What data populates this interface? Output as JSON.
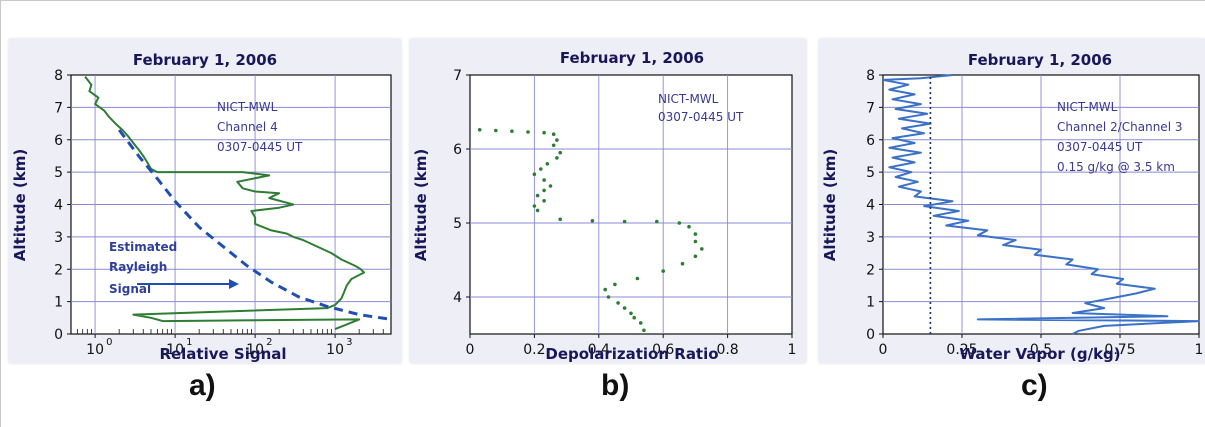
{
  "chart_data": [
    {
      "type": "line",
      "title": "February 1, 2006",
      "xlabel": "Relative Signal",
      "ylabel": "Altitude (km)",
      "x_scale": "log",
      "xlim": [
        0.5,
        5000
      ],
      "ylim": [
        0,
        8
      ],
      "x_ticks": [
        "10",
        "10",
        "10",
        "10"
      ],
      "x_tick_exponents": [
        "0",
        "1",
        "2",
        "3"
      ],
      "y_ticks": [
        "0",
        "1",
        "2",
        "3",
        "4",
        "5",
        "6",
        "7",
        "8"
      ],
      "grid": true,
      "annotations": [
        "NICT-MWL",
        "Channel 4",
        "0307-0445 UT"
      ],
      "curve_label": [
        "Estimated",
        "Rayleigh",
        "Signal"
      ],
      "panel_label": "a)",
      "series": [
        {
          "style": "solid",
          "color": "#2e7d32",
          "points": [
            [
              0.75,
              7.95
            ],
            [
              0.9,
              7.7
            ],
            [
              0.85,
              7.5
            ],
            [
              1.1,
              7.3
            ],
            [
              1.0,
              7.1
            ],
            [
              1.3,
              6.9
            ],
            [
              1.5,
              6.7
            ],
            [
              1.8,
              6.5
            ],
            [
              2.2,
              6.3
            ],
            [
              2.6,
              6.1
            ],
            [
              3.0,
              5.9
            ],
            [
              3.5,
              5.7
            ],
            [
              4.0,
              5.5
            ],
            [
              4.5,
              5.3
            ],
            [
              5.0,
              5.1
            ],
            [
              6.0,
              5.0
            ],
            [
              70,
              5.0
            ],
            [
              150,
              4.9
            ],
            [
              60,
              4.7
            ],
            [
              70,
              4.5
            ],
            [
              100,
              4.4
            ],
            [
              200,
              4.35
            ],
            [
              150,
              4.2
            ],
            [
              300,
              4.0
            ],
            [
              200,
              3.9
            ],
            [
              90,
              3.8
            ],
            [
              100,
              3.6
            ],
            [
              100,
              3.4
            ],
            [
              160,
              3.2
            ],
            [
              250,
              3.1
            ],
            [
              300,
              3.0
            ],
            [
              400,
              2.9
            ],
            [
              600,
              2.7
            ],
            [
              900,
              2.5
            ],
            [
              1200,
              2.3
            ],
            [
              1800,
              2.1
            ],
            [
              2100,
              2.0
            ],
            [
              2300,
              1.9
            ],
            [
              1600,
              1.7
            ],
            [
              1400,
              1.5
            ],
            [
              1300,
              1.3
            ],
            [
              1200,
              1.1
            ],
            [
              1100,
              1.0
            ],
            [
              1000,
              0.9
            ],
            [
              800,
              0.8
            ],
            [
              3,
              0.6
            ],
            [
              5,
              0.5
            ],
            [
              7,
              0.4
            ],
            [
              2000,
              0.45
            ],
            [
              1000,
              0.15
            ]
          ]
        },
        {
          "name": "Estimated Rayleigh Signal",
          "style": "dashed",
          "color": "#1f4fb0",
          "points": [
            [
              2.0,
              6.3
            ],
            [
              3.5,
              5.5
            ],
            [
              6,
              4.8
            ],
            [
              10,
              4.1
            ],
            [
              20,
              3.3
            ],
            [
              40,
              2.7
            ],
            [
              80,
              2.1
            ],
            [
              160,
              1.6
            ],
            [
              350,
              1.15
            ],
            [
              800,
              0.85
            ],
            [
              2000,
              0.6
            ],
            [
              5000,
              0.45
            ]
          ]
        }
      ]
    },
    {
      "type": "scatter",
      "title": "February 1, 2006",
      "xlabel": "Depolarization Ratio",
      "ylabel": "Altitude (km)",
      "xlim": [
        0,
        1
      ],
      "ylim": [
        3.5,
        7
      ],
      "x_ticks": [
        "0",
        "0.2",
        "0.4",
        "0.6",
        "0.8",
        "1"
      ],
      "y_ticks": [
        "4",
        "5",
        "6",
        "7"
      ],
      "grid": true,
      "annotations": [
        "NICT-MWL",
        "0307-0445 UT"
      ],
      "panel_label": "b)",
      "series": [
        {
          "color": "#2e7d32",
          "points": [
            [
              0.03,
              6.26
            ],
            [
              0.08,
              6.25
            ],
            [
              0.13,
              6.24
            ],
            [
              0.18,
              6.23
            ],
            [
              0.23,
              6.22
            ],
            [
              0.26,
              6.2
            ],
            [
              0.27,
              6.12
            ],
            [
              0.26,
              6.05
            ],
            [
              0.28,
              5.95
            ],
            [
              0.27,
              5.88
            ],
            [
              0.24,
              5.8
            ],
            [
              0.22,
              5.73
            ],
            [
              0.2,
              5.66
            ],
            [
              0.23,
              5.58
            ],
            [
              0.25,
              5.5
            ],
            [
              0.23,
              5.44
            ],
            [
              0.21,
              5.37
            ],
            [
              0.23,
              5.3
            ],
            [
              0.2,
              5.23
            ],
            [
              0.21,
              5.17
            ],
            [
              0.28,
              5.05
            ],
            [
              0.38,
              5.03
            ],
            [
              0.48,
              5.02
            ],
            [
              0.58,
              5.02
            ],
            [
              0.65,
              5.0
            ],
            [
              0.68,
              4.95
            ],
            [
              0.7,
              4.85
            ],
            [
              0.7,
              4.75
            ],
            [
              0.72,
              4.65
            ],
            [
              0.7,
              4.55
            ],
            [
              0.66,
              4.45
            ],
            [
              0.6,
              4.35
            ],
            [
              0.52,
              4.25
            ],
            [
              0.45,
              4.17
            ],
            [
              0.42,
              4.1
            ],
            [
              0.43,
              4.0
            ],
            [
              0.46,
              3.92
            ],
            [
              0.48,
              3.85
            ],
            [
              0.5,
              3.78
            ],
            [
              0.51,
              3.72
            ],
            [
              0.53,
              3.65
            ],
            [
              0.54,
              3.55
            ]
          ]
        }
      ]
    },
    {
      "type": "line",
      "title": "February 1, 2006",
      "xlabel": "Water Vapor (g/kg)",
      "ylabel": "Altitude (km)",
      "xlim": [
        0,
        1
      ],
      "ylim": [
        0,
        8
      ],
      "x_ticks": [
        "0",
        "0.25",
        "0.5",
        "0.75",
        "1"
      ],
      "y_ticks": [
        "0",
        "1",
        "2",
        "3",
        "4",
        "5",
        "6",
        "7",
        "8"
      ],
      "grid": true,
      "annotations": [
        "NICT-MWL",
        "Channel 2/Channel 3",
        "0307-0445 UT",
        "0.15 g/kg @ 3.5 km"
      ],
      "panel_label": "c)",
      "series": [
        {
          "color": "#3b72c8",
          "points": [
            [
              0.22,
              8.0
            ],
            [
              0.12,
              7.9
            ],
            [
              0.0,
              7.85
            ],
            [
              0.08,
              7.7
            ],
            [
              0.02,
              7.55
            ],
            [
              0.1,
              7.4
            ],
            [
              0.03,
              7.25
            ],
            [
              0.12,
              7.1
            ],
            [
              0.04,
              6.95
            ],
            [
              0.14,
              6.8
            ],
            [
              0.05,
              6.65
            ],
            [
              0.15,
              6.5
            ],
            [
              0.06,
              6.35
            ],
            [
              0.13,
              6.2
            ],
            [
              0.03,
              6.05
            ],
            [
              0.1,
              5.9
            ],
            [
              0.02,
              5.75
            ],
            [
              0.12,
              5.6
            ],
            [
              0.03,
              5.45
            ],
            [
              0.1,
              5.3
            ],
            [
              0.02,
              5.15
            ],
            [
              0.09,
              5.0
            ],
            [
              0.04,
              4.85
            ],
            [
              0.11,
              4.7
            ],
            [
              0.05,
              4.55
            ],
            [
              0.12,
              4.4
            ],
            [
              0.1,
              4.25
            ],
            [
              0.22,
              4.1
            ],
            [
              0.13,
              3.95
            ],
            [
              0.24,
              3.8
            ],
            [
              0.16,
              3.65
            ],
            [
              0.27,
              3.5
            ],
            [
              0.2,
              3.35
            ],
            [
              0.33,
              3.2
            ],
            [
              0.3,
              3.05
            ],
            [
              0.42,
              2.9
            ],
            [
              0.38,
              2.75
            ],
            [
              0.5,
              2.6
            ],
            [
              0.48,
              2.45
            ],
            [
              0.6,
              2.3
            ],
            [
              0.58,
              2.15
            ],
            [
              0.68,
              2.0
            ],
            [
              0.66,
              1.85
            ],
            [
              0.76,
              1.7
            ],
            [
              0.74,
              1.55
            ],
            [
              0.86,
              1.4
            ],
            [
              0.8,
              1.25
            ],
            [
              0.72,
              1.1
            ],
            [
              0.64,
              0.95
            ],
            [
              0.7,
              0.8
            ],
            [
              0.6,
              0.65
            ],
            [
              0.9,
              0.55
            ],
            [
              0.3,
              0.45
            ],
            [
              1.0,
              0.4
            ],
            [
              0.7,
              0.25
            ],
            [
              0.62,
              0.1
            ],
            [
              0.6,
              0.0
            ]
          ]
        },
        {
          "name": "0.15 g/kg @ 3.5 km",
          "style": "dotted",
          "color": "#1a2f6a",
          "points": [
            [
              0.15,
              0
            ],
            [
              0.15,
              8
            ]
          ]
        }
      ]
    }
  ]
}
